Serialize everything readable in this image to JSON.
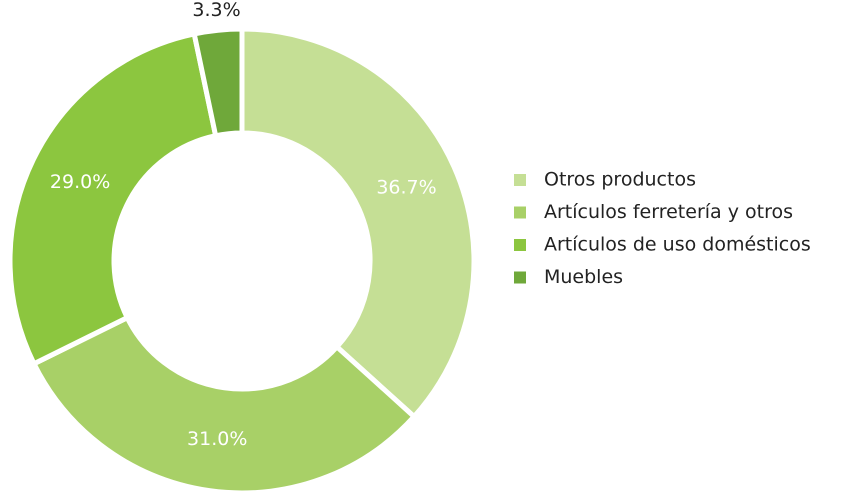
{
  "chart_data": {
    "type": "pie",
    "categories": [
      "Otros productos",
      "Artículos ferretería y otros",
      "Artículos de uso domésticos",
      "Muebles"
    ],
    "values": [
      36.7,
      31.0,
      29.0,
      3.3
    ],
    "value_labels": [
      "36.7%",
      "31.0%",
      "29.0%",
      "3.3%"
    ],
    "colors": [
      "#c5df95",
      "#a8d067",
      "#8cc63f",
      "#6fa83a"
    ],
    "legend": "right"
  }
}
